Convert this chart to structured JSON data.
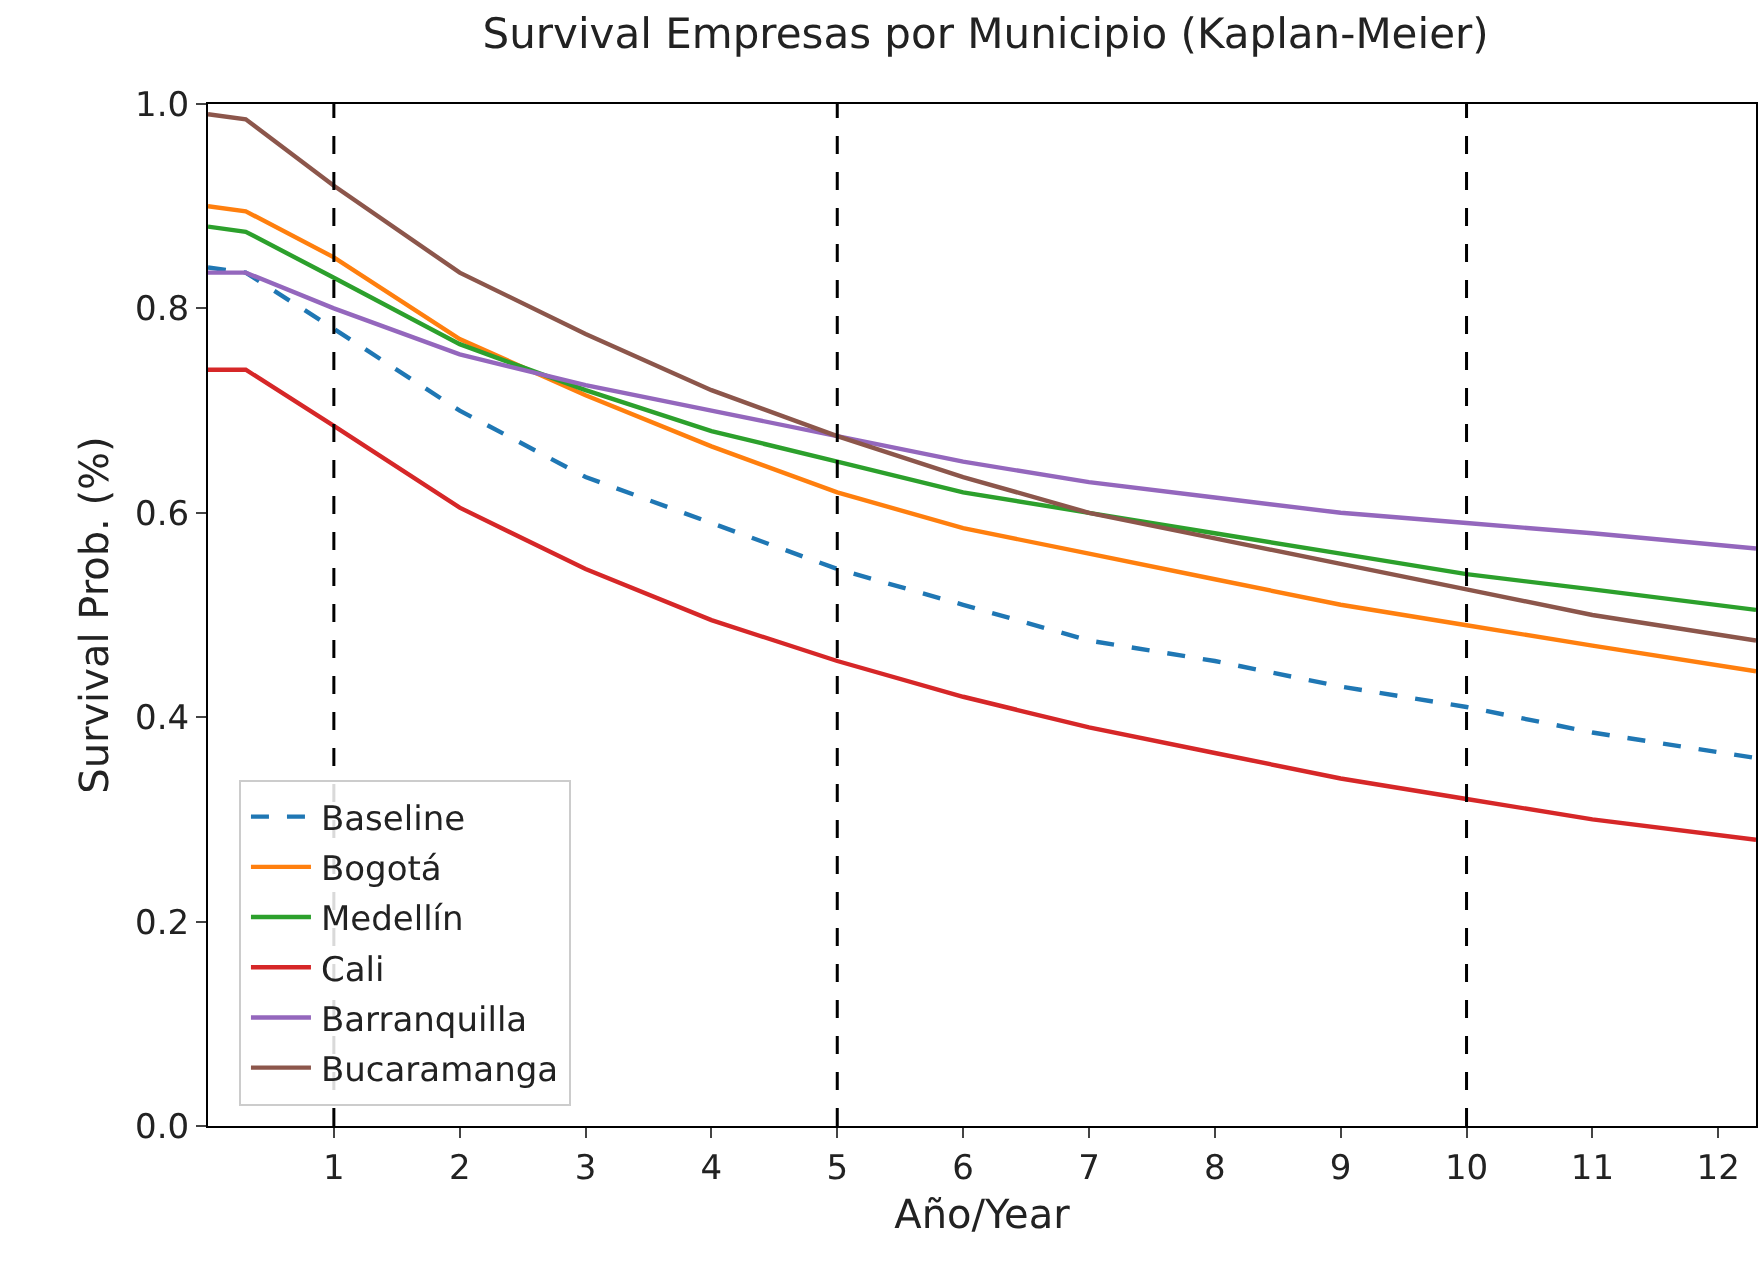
{
  "chart_data": {
    "type": "line",
    "title": "Survival Empresas por Municipio (Kaplan-Meier)",
    "xlabel": "Año/Year",
    "ylabel": "Survival Prob. (%)",
    "x": [
      0,
      0.3,
      1,
      2,
      3,
      4,
      5,
      6,
      7,
      8,
      9,
      10,
      11,
      12.3
    ],
    "series": [
      {
        "name": "Baseline",
        "color": "#1f77b4",
        "line_style": "dashed",
        "values": [
          0.84,
          0.835,
          0.78,
          0.7,
          0.635,
          0.59,
          0.545,
          0.51,
          0.475,
          0.455,
          0.43,
          0.41,
          0.385,
          0.36
        ]
      },
      {
        "name": "Bogotá",
        "color": "#ff7f0e",
        "values": [
          0.9,
          0.895,
          0.85,
          0.77,
          0.715,
          0.665,
          0.62,
          0.585,
          0.56,
          0.535,
          0.51,
          0.49,
          0.47,
          0.445
        ]
      },
      {
        "name": "Medellín",
        "color": "#2ca02c",
        "values": [
          0.88,
          0.875,
          0.83,
          0.765,
          0.72,
          0.68,
          0.65,
          0.62,
          0.6,
          0.58,
          0.56,
          0.54,
          0.525,
          0.505
        ]
      },
      {
        "name": "Cali",
        "color": "#d62728",
        "values": [
          0.74,
          0.74,
          0.685,
          0.605,
          0.545,
          0.495,
          0.455,
          0.42,
          0.39,
          0.365,
          0.34,
          0.32,
          0.3,
          0.28
        ]
      },
      {
        "name": "Barranquilla",
        "color": "#9467bd",
        "values": [
          0.835,
          0.835,
          0.8,
          0.755,
          0.725,
          0.7,
          0.675,
          0.65,
          0.63,
          0.615,
          0.6,
          0.59,
          0.58,
          0.565
        ]
      },
      {
        "name": "Bucaramanga",
        "color": "#8c564b",
        "values": [
          0.99,
          0.985,
          0.92,
          0.835,
          0.775,
          0.72,
          0.675,
          0.635,
          0.6,
          0.575,
          0.55,
          0.525,
          0.5,
          0.475
        ]
      }
    ],
    "xlim": [
      0,
      12.3
    ],
    "xticks": [
      1,
      2,
      3,
      4,
      5,
      6,
      7,
      8,
      9,
      10,
      11,
      12
    ],
    "ylim": [
      0,
      1
    ],
    "yticks": [
      {
        "value": 0,
        "label": "0.0"
      },
      {
        "value": 0.2,
        "label": "0.2"
      },
      {
        "value": 0.4,
        "label": "0.4"
      },
      {
        "value": 0.6,
        "label": "0.6"
      },
      {
        "value": 0.8,
        "label": "0.8"
      },
      {
        "value": 1,
        "label": "1.0"
      }
    ],
    "ref_lines": [
      {
        "axis": "x",
        "value": 1,
        "color": "#000000",
        "line_style": "dashed"
      },
      {
        "axis": "x",
        "value": 5,
        "color": "#000000",
        "line_style": "dashed"
      },
      {
        "axis": "x",
        "value": 10,
        "color": "#000000",
        "line_style": "dashed"
      }
    ],
    "grid": false,
    "legend": "bottom left",
    "marker": "none",
    "line_style": "solid"
  }
}
